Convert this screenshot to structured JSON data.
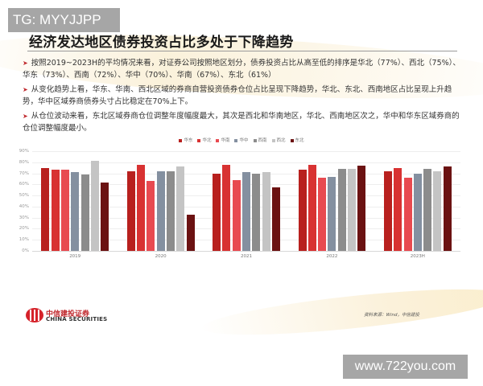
{
  "overlay": {
    "top_tag": "TG: MYYJJPP",
    "bottom_watermark": "www.722you.com"
  },
  "slide": {
    "title": "经济发达地区债券投资占比多处于下降趋势",
    "bullets": [
      "按照2019~2023H的平均情况来看，对证券公司按照地区划分，债券投资占比从高至低的排序是华北（77%）、西北（75%）、华东（73%）、西南（72%）、华中（70%）、华南（67%）、东北（61%）",
      "从变化趋势上看，华东、华南、西北区域的券商自营投资债券仓位占比呈现下降趋势，华北、东北、西南地区占比呈现上升趋势，华中区域券商债券头寸占比稳定在70%上下。",
      "从仓位波动来看，东北区域券商仓位调整年度幅度最大，其次是西北和华南地区，华北、西南地区次之，华中和华东区域券商的仓位调整幅度最小。"
    ],
    "bullet_icon": "arrow-right-icon",
    "logo": {
      "cn": "中信建投证券",
      "en": "CHINA SECURITIES"
    },
    "source": "资料来源：Wind，中信建投"
  },
  "chart_data": {
    "type": "bar",
    "title": "",
    "xlabel": "",
    "ylabel": "",
    "ylim": [
      0,
      90
    ],
    "yticks": [
      "0%",
      "10%",
      "20%",
      "30%",
      "40%",
      "50%",
      "60%",
      "70%",
      "80%",
      "90%"
    ],
    "grid": true,
    "legend_position": "top",
    "categories": [
      "2019",
      "2020",
      "2021",
      "2022",
      "2023H"
    ],
    "series": [
      {
        "name": "华东",
        "color": "#B8201E",
        "values": [
          75,
          72,
          70,
          73,
          72
        ]
      },
      {
        "name": "华北",
        "color": "#D83232",
        "values": [
          73,
          78,
          78,
          78,
          75
        ]
      },
      {
        "name": "华南",
        "color": "#E84A50",
        "values": [
          73,
          63,
          64,
          66,
          66
        ]
      },
      {
        "name": "华中",
        "color": "#8490A0",
        "values": [
          71,
          72,
          71,
          67,
          70
        ]
      },
      {
        "name": "西南",
        "color": "#8C8C8C",
        "values": [
          69,
          72,
          70,
          74,
          74
        ]
      },
      {
        "name": "西北",
        "color": "#C4C4C4",
        "values": [
          81,
          76,
          71,
          74,
          72
        ]
      },
      {
        "name": "东北",
        "color": "#6B1212",
        "values": [
          62,
          33,
          57,
          77,
          76
        ]
      }
    ]
  }
}
